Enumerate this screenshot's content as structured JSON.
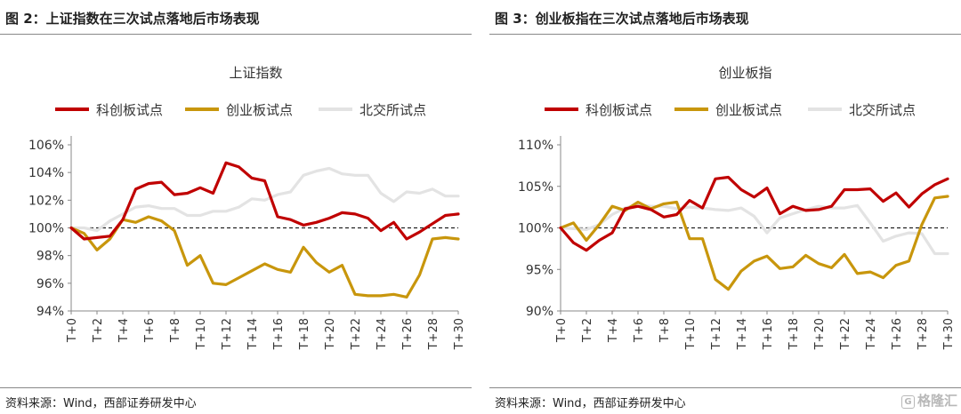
{
  "panels": [
    {
      "figure_title": "图 2：上证指数在三次试点落地后市场表现",
      "source": "资料来源：Wind，西部证券研发中心",
      "chart_data": {
        "type": "line",
        "title": "上证指数",
        "x": [
          "T+0",
          "T+1",
          "T+2",
          "T+3",
          "T+4",
          "T+5",
          "T+6",
          "T+7",
          "T+8",
          "T+9",
          "T+10",
          "T+11",
          "T+12",
          "T+13",
          "T+14",
          "T+15",
          "T+16",
          "T+17",
          "T+18",
          "T+19",
          "T+20",
          "T+21",
          "T+22",
          "T+23",
          "T+24",
          "T+25",
          "T+26",
          "T+27",
          "T+28",
          "T+29",
          "T+30"
        ],
        "x_tick_labels": [
          "T+0",
          "T+2",
          "T+4",
          "T+6",
          "T+8",
          "T+10",
          "T+12",
          "T+14",
          "T+16",
          "T+18",
          "T+20",
          "T+22",
          "T+24",
          "T+26",
          "T+28",
          "T+30"
        ],
        "y_tick_labels": [
          "94%",
          "96%",
          "98%",
          "100%",
          "102%",
          "104%",
          "106%"
        ],
        "ylim": [
          94,
          106
        ],
        "reference_line": 100,
        "legend_position": "top",
        "series": [
          {
            "name": "科创板试点",
            "color": "#c00000",
            "values": [
              100,
              99.2,
              99.3,
              99.4,
              100.6,
              102.8,
              103.2,
              103.3,
              102.4,
              102.5,
              102.9,
              102.5,
              104.7,
              104.4,
              103.6,
              103.4,
              100.8,
              100.6,
              100.2,
              100.4,
              100.7,
              101.1,
              101.0,
              100.7,
              99.8,
              100.4,
              99.2,
              99.7,
              100.3,
              100.9,
              101.0
            ]
          },
          {
            "name": "创业板试点",
            "color": "#c8960c",
            "values": [
              100,
              99.6,
              98.4,
              99.2,
              100.6,
              100.4,
              100.8,
              100.5,
              99.8,
              97.3,
              98.0,
              96.0,
              95.9,
              96.4,
              96.9,
              97.4,
              97.0,
              96.8,
              98.6,
              97.5,
              96.8,
              97.3,
              95.2,
              95.1,
              95.1,
              95.2,
              95.0,
              96.6,
              99.2,
              99.3,
              99.2
            ]
          },
          {
            "name": "北交所试点",
            "color": "#e3e3e3",
            "values": [
              100,
              100.0,
              99.8,
              100.5,
              101.0,
              101.5,
              101.6,
              101.4,
              101.4,
              100.9,
              100.9,
              101.2,
              101.2,
              101.5,
              102.1,
              102.0,
              102.4,
              102.6,
              103.8,
              104.1,
              104.3,
              103.9,
              103.8,
              103.8,
              102.5,
              101.9,
              102.6,
              102.5,
              102.8,
              102.3,
              102.3
            ]
          }
        ]
      }
    },
    {
      "figure_title": "图 3：创业板指在三次试点落地后市场表现",
      "source": "资料来源：Wind，西部证券研发中心",
      "chart_data": {
        "type": "line",
        "title": "创业板指",
        "x": [
          "T+0",
          "T+1",
          "T+2",
          "T+3",
          "T+4",
          "T+5",
          "T+6",
          "T+7",
          "T+8",
          "T+9",
          "T+10",
          "T+11",
          "T+12",
          "T+13",
          "T+14",
          "T+15",
          "T+16",
          "T+17",
          "T+18",
          "T+19",
          "T+20",
          "T+21",
          "T+22",
          "T+23",
          "T+24",
          "T+25",
          "T+26",
          "T+27",
          "T+28",
          "T+29",
          "T+30"
        ],
        "x_tick_labels": [
          "T+0",
          "T+2",
          "T+4",
          "T+6",
          "T+8",
          "T+10",
          "T+12",
          "T+14",
          "T+16",
          "T+18",
          "T+20",
          "T+22",
          "T+24",
          "T+26",
          "T+28",
          "T+30"
        ],
        "y_tick_labels": [
          "90%",
          "95%",
          "100%",
          "105%",
          "110%"
        ],
        "ylim": [
          90,
          110
        ],
        "reference_line": 100,
        "legend_position": "top",
        "series": [
          {
            "name": "科创板试点",
            "color": "#c00000",
            "values": [
              100,
              98.2,
              97.3,
              98.5,
              99.4,
              102.3,
              102.6,
              102.2,
              101.3,
              101.6,
              103.3,
              102.4,
              105.9,
              106.1,
              104.6,
              103.7,
              104.8,
              101.7,
              102.6,
              102.1,
              102.2,
              102.6,
              104.6,
              104.6,
              104.7,
              103.2,
              104.2,
              102.5,
              104.1,
              105.2,
              105.9
            ]
          },
          {
            "name": "创业板试点",
            "color": "#c8960c",
            "values": [
              100,
              100.6,
              98.5,
              100.4,
              102.6,
              102.1,
              103.1,
              102.3,
              102.9,
              103.1,
              98.7,
              98.7,
              93.8,
              92.6,
              94.8,
              96.0,
              96.6,
              95.1,
              95.3,
              96.7,
              95.7,
              95.2,
              96.8,
              94.5,
              94.7,
              94.0,
              95.5,
              96.0,
              100.4,
              103.6,
              103.8
            ]
          },
          {
            "name": "北交所试点",
            "color": "#e3e3e3",
            "values": [
              100,
              99.9,
              99.8,
              100.4,
              101.6,
              102.4,
              102.8,
              102.6,
              102.6,
              102.3,
              102.5,
              102.4,
              102.2,
              102.1,
              102.4,
              101.4,
              99.4,
              101.2,
              101.7,
              102.2,
              102.6,
              102.4,
              102.4,
              102.7,
              100.6,
              98.4,
              99.0,
              99.4,
              99.3,
              96.9,
              96.9
            ]
          }
        ]
      }
    }
  ],
  "watermark": "格隆汇"
}
